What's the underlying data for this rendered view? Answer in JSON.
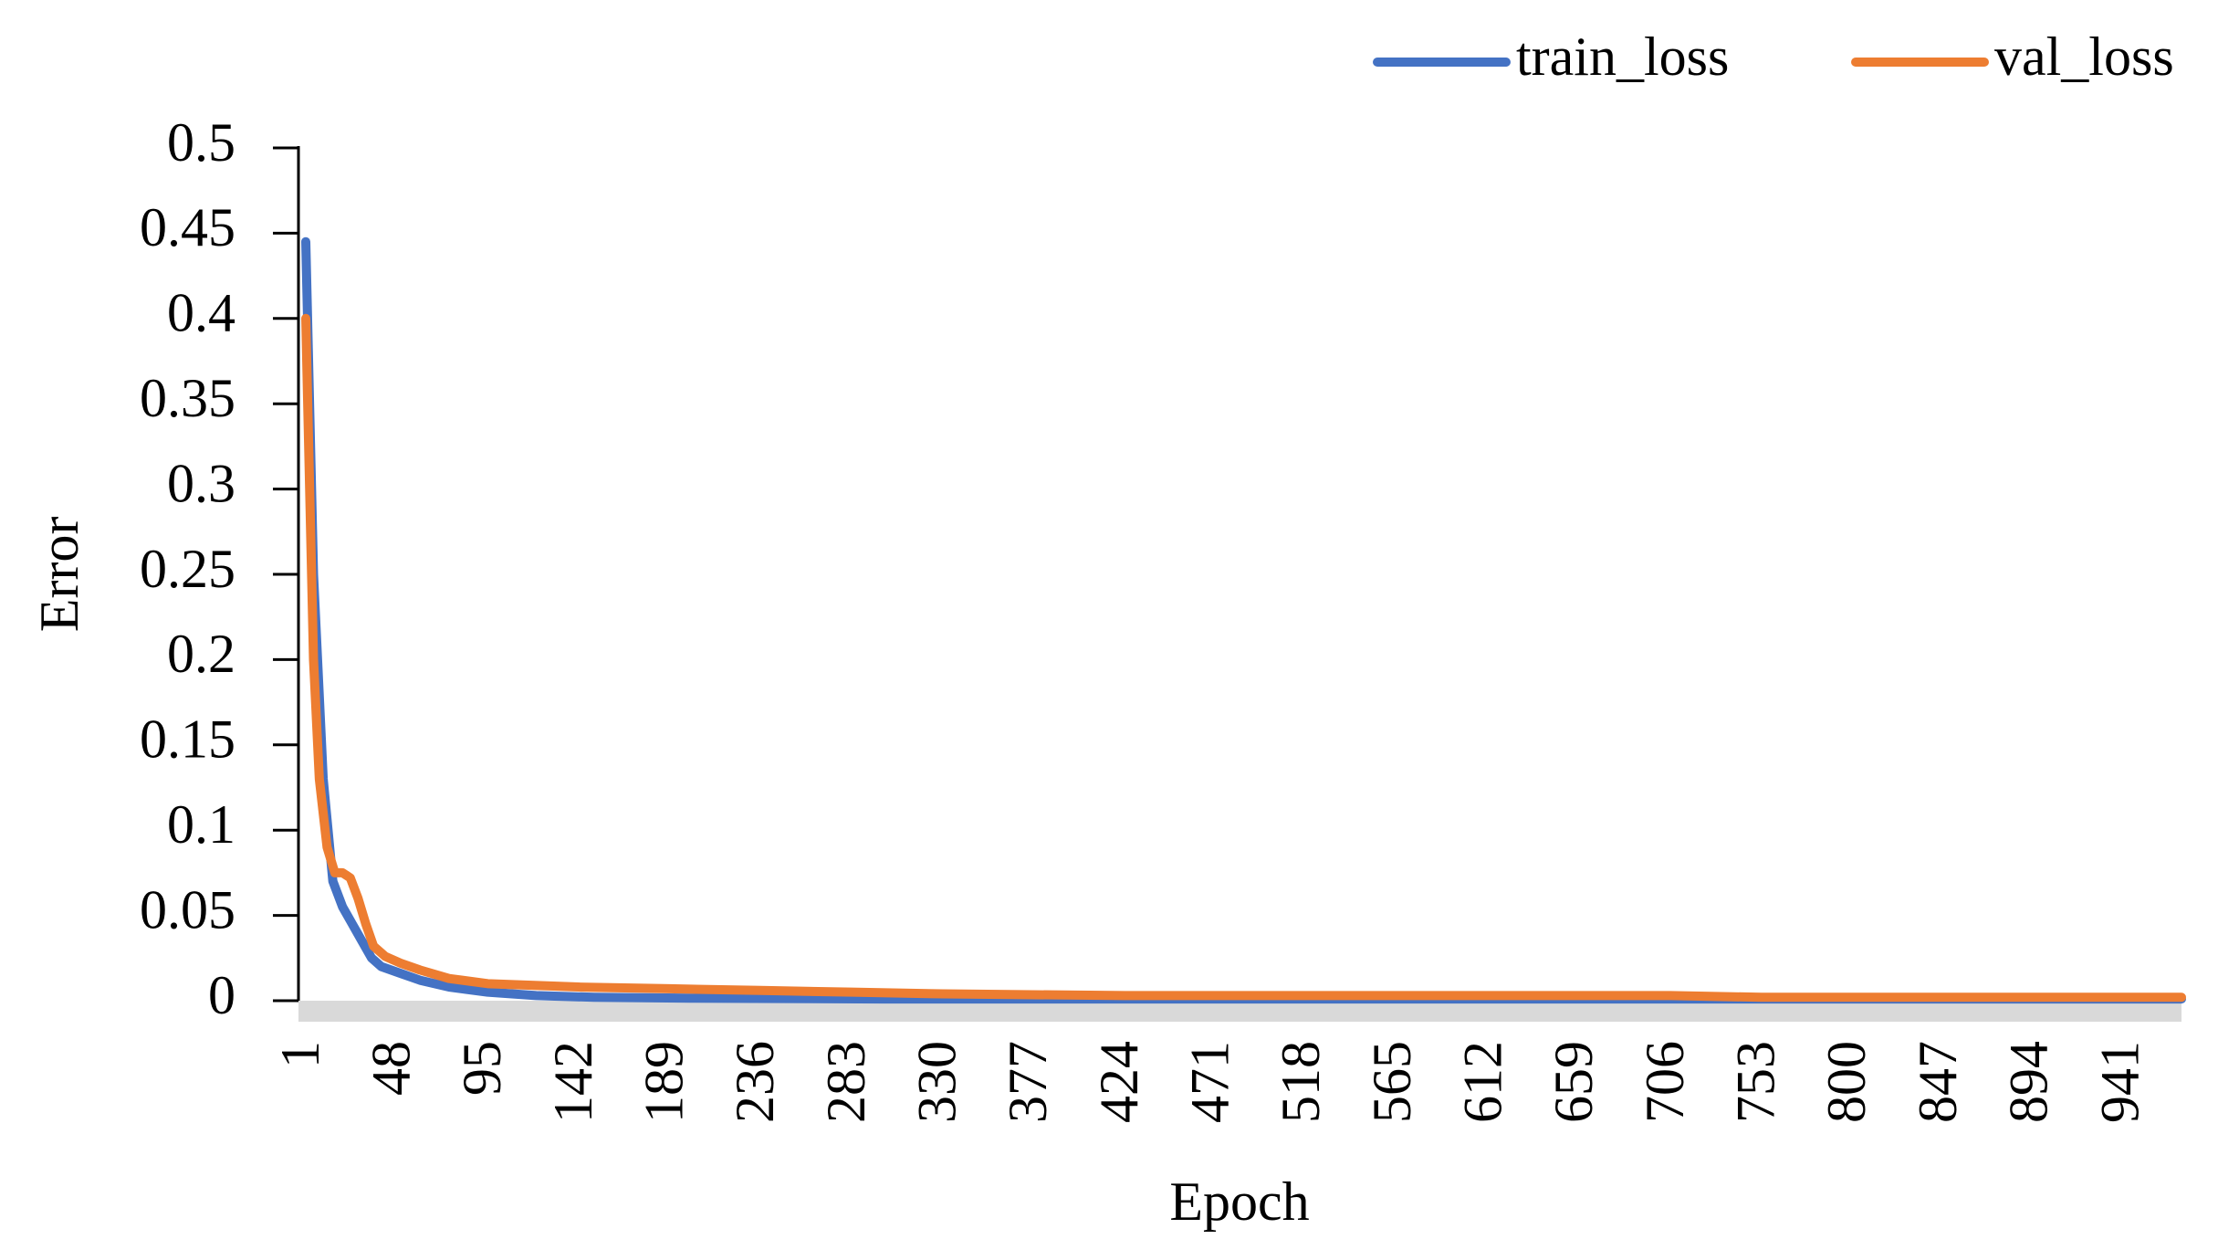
{
  "chart_data": {
    "type": "line",
    "x_label": "Epoch",
    "y_label": "Error",
    "xlim": [
      1,
      970
    ],
    "xticks": [
      1,
      48,
      95,
      142,
      189,
      236,
      283,
      330,
      377,
      424,
      471,
      518,
      565,
      612,
      659,
      706,
      753,
      800,
      847,
      894,
      941
    ],
    "ylim": [
      0,
      0.5
    ],
    "yticks": [
      0,
      0.05,
      0.1,
      0.15,
      0.2,
      0.25,
      0.3,
      0.35,
      0.4,
      0.45,
      0.5
    ],
    "legend": "top-right",
    "series": [
      {
        "name": "train_loss",
        "color": "#4472c4",
        "x": [
          1,
          5,
          10,
          15,
          20,
          25,
          30,
          35,
          40,
          50,
          60,
          75,
          95,
          120,
          150,
          200,
          300,
          500,
          700,
          970
        ],
        "values": [
          0.445,
          0.25,
          0.13,
          0.07,
          0.055,
          0.045,
          0.035,
          0.025,
          0.02,
          0.016,
          0.012,
          0.008,
          0.005,
          0.003,
          0.002,
          0.0015,
          0.001,
          0.001,
          0.001,
          0.001
        ]
      },
      {
        "name": "val_loss",
        "color": "#ed7d31",
        "x": [
          1,
          5,
          8,
          12,
          16,
          20,
          24,
          28,
          32,
          36,
          42,
          50,
          60,
          75,
          95,
          142,
          189,
          236,
          283,
          330,
          424,
          600,
          706,
          753,
          970
        ],
        "values": [
          0.4,
          0.2,
          0.13,
          0.09,
          0.075,
          0.075,
          0.072,
          0.06,
          0.045,
          0.032,
          0.026,
          0.022,
          0.018,
          0.013,
          0.01,
          0.008,
          0.007,
          0.006,
          0.005,
          0.004,
          0.003,
          0.003,
          0.003,
          0.002,
          0.002
        ]
      }
    ]
  }
}
